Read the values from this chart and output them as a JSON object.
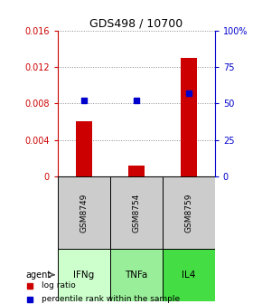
{
  "title": "GDS498 / 10700",
  "samples": [
    "GSM8749",
    "GSM8754",
    "GSM8759"
  ],
  "agents": [
    "IFNg",
    "TNFa",
    "IL4"
  ],
  "log_ratio": [
    0.006,
    0.00115,
    0.013
  ],
  "percentile": [
    52,
    52,
    57
  ],
  "ylim_left": [
    0,
    0.016
  ],
  "ylim_right": [
    0,
    100
  ],
  "yticks_left": [
    0,
    0.004,
    0.008,
    0.012,
    0.016
  ],
  "yticks_right": [
    0,
    25,
    50,
    75,
    100
  ],
  "ytick_labels_right": [
    "0",
    "25",
    "50",
    "75",
    "100%"
  ],
  "bar_color": "#cc0000",
  "square_color": "#0000cc",
  "agent_colors": [
    "#ccffcc",
    "#99ee99",
    "#44dd44"
  ],
  "sample_bg_color": "#cccccc",
  "grid_color": "#888888",
  "left_axis_color": "#cc0000",
  "right_axis_color": "#0000cc",
  "agent_label": "agent"
}
